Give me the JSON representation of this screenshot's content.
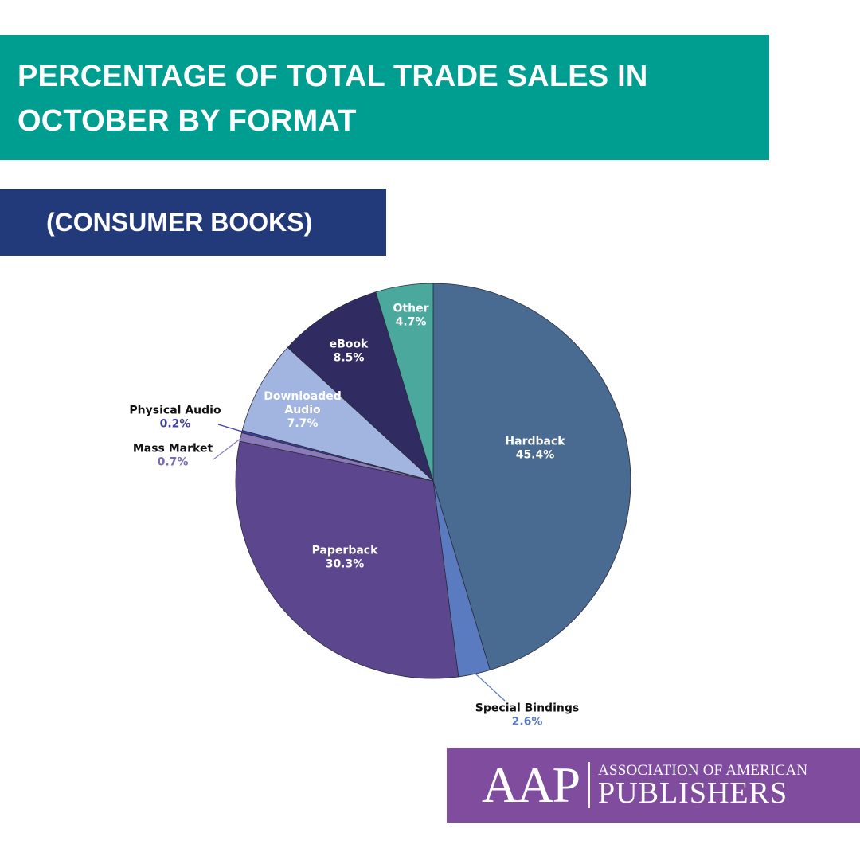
{
  "header": {
    "title_line1": "PERCENTAGE OF TOTAL TRADE SALES IN",
    "title_line2": "OCTOBER BY FORMAT",
    "subtitle": "(CONSUMER BOOKS)"
  },
  "chart_data": {
    "type": "pie",
    "slices": [
      {
        "label": "Hardback",
        "value": 45.4,
        "value_label": "45.4%",
        "color": "#4a6b91"
      },
      {
        "label": "Special Bindings",
        "value": 2.6,
        "value_label": "2.6%",
        "color": "#5b7bc0"
      },
      {
        "label": "Paperback",
        "value": 30.3,
        "value_label": "30.3%",
        "color": "#5c478e"
      },
      {
        "label": "Mass Market",
        "value": 0.7,
        "value_label": "0.7%",
        "color": "#8a7ab8"
      },
      {
        "label": "Physical Audio",
        "value": 0.2,
        "value_label": "0.2%",
        "color": "#3d3fa0"
      },
      {
        "label": "Downloaded Audio",
        "value": 7.7,
        "value_label": "7.7%",
        "color": "#a2b5e0"
      },
      {
        "label": "eBook",
        "value": 8.5,
        "value_label": "8.5%",
        "color": "#302c62"
      },
      {
        "label": "Other",
        "value": 4.7,
        "value_label": "4.7%",
        "color": "#4aa89d"
      }
    ]
  },
  "logo": {
    "mark": "AAP",
    "line1": "ASSOCIATION OF AMERICAN",
    "line2": "PUBLISHERS"
  }
}
